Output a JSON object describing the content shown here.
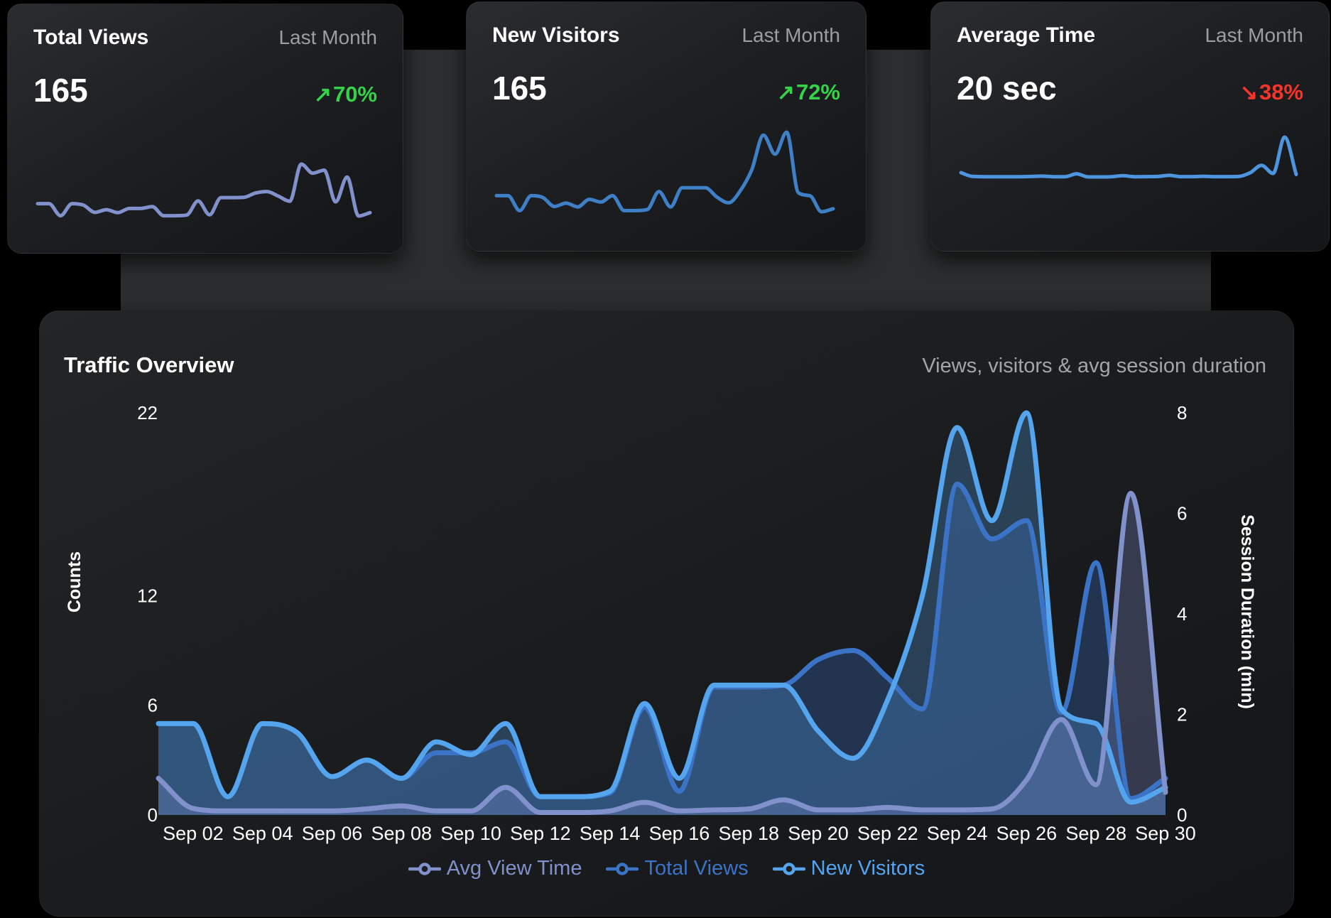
{
  "colors": {
    "up": "#35D24A",
    "down": "#F5342A",
    "text": "#ffffff",
    "muted": "#9c9ea0",
    "panel_bg": "#1b1d20"
  },
  "cards": [
    {
      "title": "Total Views",
      "period": "Last Month",
      "value": "165",
      "arrow": "↗",
      "delta": "70%",
      "trend": "up",
      "spark_series": "Total Views",
      "spark_color": "#8191CB"
    },
    {
      "title": "New Visitors",
      "period": "Last Month",
      "value": "165",
      "arrow": "↗",
      "delta": "72%",
      "trend": "up",
      "spark_series": "New Visitors",
      "spark_color": "#3E7FC6"
    },
    {
      "title": "Average Time",
      "period": "Last Month",
      "value": "20 sec",
      "arrow": "↘",
      "delta": "38%",
      "trend": "down",
      "spark_series": "Avg View Time",
      "spark_color": "#4E95DF"
    }
  ],
  "panel": {
    "title": "Traffic Overview",
    "subtitle": "Views, visitors & avg session duration"
  },
  "chart_data": {
    "type": "area",
    "title": "Traffic Overview",
    "subtitle": "Views, visitors & avg session duration",
    "x": [
      "Sep 01",
      "Sep 02",
      "Sep 03",
      "Sep 04",
      "Sep 05",
      "Sep 06",
      "Sep 07",
      "Sep 08",
      "Sep 09",
      "Sep 10",
      "Sep 11",
      "Sep 12",
      "Sep 13",
      "Sep 14",
      "Sep 15",
      "Sep 16",
      "Sep 17",
      "Sep 18",
      "Sep 19",
      "Sep 20",
      "Sep 21",
      "Sep 22",
      "Sep 23",
      "Sep 24",
      "Sep 25",
      "Sep 26",
      "Sep 27",
      "Sep 28",
      "Sep 29",
      "Sep 30"
    ],
    "x_tick_labels": [
      "Sep 02",
      "Sep 04",
      "Sep 06",
      "Sep 08",
      "Sep 10",
      "Sep 12",
      "Sep 14",
      "Sep 16",
      "Sep 18",
      "Sep 20",
      "Sep 22",
      "Sep 24",
      "Sep 26",
      "Sep 28",
      "Sep 30"
    ],
    "left_axis": {
      "label": "Counts",
      "min": 0,
      "max": 22,
      "ticks": [
        0,
        6,
        12,
        22
      ]
    },
    "right_axis": {
      "label": "Session Duration (min)",
      "min": 0,
      "max": 8,
      "ticks": [
        0,
        2,
        4,
        6,
        8
      ]
    },
    "grid": false,
    "legend_position": "bottom",
    "series": [
      {
        "name": "Avg View Time",
        "axis": "right",
        "color": "#8191CB",
        "fill": "rgba(126,140,200,0.30)",
        "values": [
          0.73,
          0.13,
          0.08,
          0.08,
          0.08,
          0.08,
          0.12,
          0.18,
          0.08,
          0.08,
          0.55,
          0.05,
          0.05,
          0.08,
          0.25,
          0.08,
          0.1,
          0.12,
          0.3,
          0.1,
          0.1,
          0.15,
          0.1,
          0.1,
          0.12,
          0.7,
          1.9,
          0.6,
          6.4,
          0.45
        ]
      },
      {
        "name": "Total Views",
        "axis": "left",
        "color": "#3B74C6",
        "fill": "rgba(59,114,200,0.30)",
        "values": [
          5,
          5,
          1,
          5,
          4.5,
          2.1,
          3,
          2,
          3.4,
          3.4,
          4,
          1,
          1,
          1.2,
          5.9,
          1.3,
          7,
          7,
          7.1,
          8.5,
          9,
          7.5,
          5.8,
          18.1,
          15.1,
          16.1,
          5.6,
          13.8,
          0.9,
          2
        ]
      },
      {
        "name": "New Visitors",
        "axis": "left",
        "color": "#55A4EE",
        "fill": "rgba(85,164,238,0.28)",
        "values": [
          5,
          5,
          1,
          5,
          4.5,
          2.1,
          3,
          2,
          4,
          3.3,
          5,
          1,
          1,
          1.3,
          6.1,
          2,
          7.1,
          7.1,
          7.1,
          4.6,
          3.1,
          6.3,
          12,
          21.2,
          16.1,
          22,
          5.8,
          5,
          0.7,
          1.5
        ]
      }
    ]
  }
}
